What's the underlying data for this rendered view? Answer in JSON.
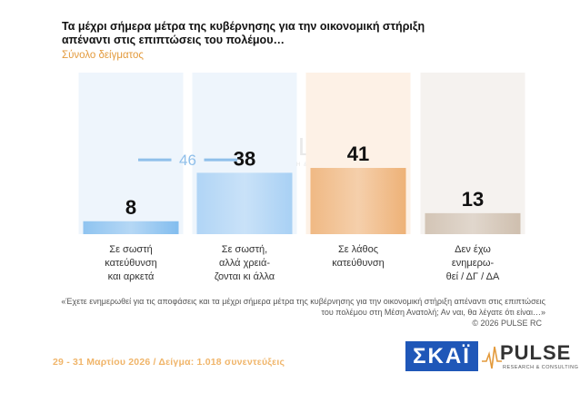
{
  "title": "Τα μέχρι σήμερα μέτρα της κυβέρνησης για την οικονομική στήριξη απέναντι στις επιπτώσεις του πολέμου…",
  "subtitle": "Σύνολο δείγματος",
  "chart_data": {
    "type": "bar",
    "categories": [
      "Σε σωστή κατεύθυνση και αρκετά",
      "Σε σωστή, αλλά χρειά- ζονται κι άλλα",
      "Σε λάθος κατεύθυνση",
      "Δεν έχω ενημερω- θεί / ΔΓ / ΔΑ"
    ],
    "category_lines": [
      [
        "Σε σωστή",
        "κατεύθυνση",
        "και αρκετά"
      ],
      [
        "Σε σωστή,",
        "αλλά χρειά-",
        "ζονται κι άλλα"
      ],
      [
        "Σε λάθος",
        "κατεύθυνση"
      ],
      [
        "Δεν έχω",
        "ενημερω-",
        "θεί / ΔΓ / ΔΑ"
      ]
    ],
    "values": [
      8,
      38,
      41,
      13
    ],
    "colors": [
      "#6fb3ec",
      "#9ccaf3",
      "#eba663",
      "#c8b6a3"
    ],
    "bracket": {
      "label": "46",
      "spans": [
        0,
        1
      ],
      "value": 46
    },
    "ylim": [
      0,
      100
    ]
  },
  "note": "«Έχετε ενημερωθεί για τις αποφάσεις και τα μέχρι σήμερα μέτρα της κυβέρνησης για την οικονομική στήριξη απέναντι στις επιπτώσεις του πολέμου στη Μέση Ανατολή; Αν ναι, θα λέγατε ότι είναι…»",
  "copyright": "© 2026 PULSE RC",
  "footer": "29 - 31 Μαρτίου 2026 / Δείγμα: 1.018 συνεντεύξεις",
  "logos": {
    "skai": "ΣΚΑΪ",
    "pulse": "PULSE",
    "pulse_sub": "RESEARCH & CONSULTING"
  }
}
